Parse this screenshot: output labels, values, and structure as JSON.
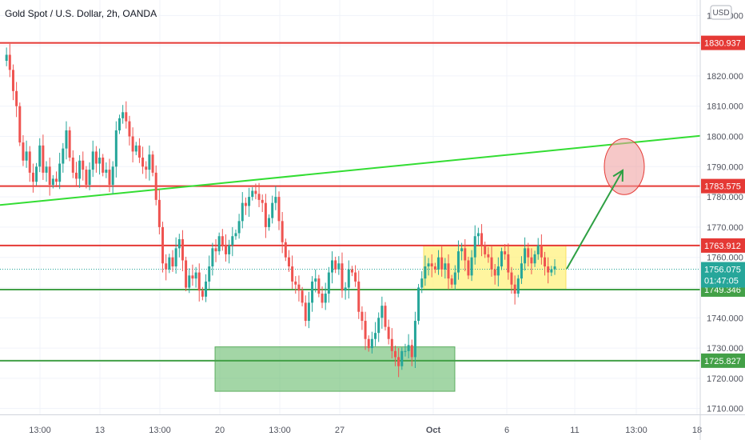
{
  "title": "Gold Spot / U.S. Dollar, 2h, OANDA",
  "currency": "USD",
  "colors": {
    "up": "#26a69a",
    "down": "#ef5350",
    "resistance": "#e53935",
    "support": "#43a047",
    "trendline": "#33dd33",
    "price_tag": "#26a69a",
    "yellow_zone": "#fff176",
    "green_zone": "#66bb6a",
    "target": "#ef9a9a"
  },
  "chart_data": {
    "type": "candlestick",
    "symbol": "XAUUSD",
    "interval": "2h",
    "ylim": [
      1707,
      1843
    ],
    "y_ticks": [
      1710,
      1720,
      1730,
      1740,
      1750,
      1760,
      1770,
      1780,
      1790,
      1800,
      1810,
      1820,
      1830,
      1840
    ],
    "y_tick_labels": [
      "1710.000",
      "1720.000",
      "1730.000",
      "1740.000",
      "1750.000",
      "1760.000",
      "1770.000",
      "1780.000",
      "1790.000",
      "1800.000",
      "1810.000",
      "1820.000",
      "1830.000",
      "1840.000"
    ],
    "x_ticks": [
      "13:00",
      "13",
      "13:00",
      "20",
      "13:00",
      "27",
      "Oct",
      "6",
      "11",
      "13:00",
      "18"
    ],
    "levels": [
      {
        "label": "1830.937",
        "value": 1830.937,
        "kind": "resistance"
      },
      {
        "label": "1783.575",
        "value": 1783.575,
        "kind": "resistance"
      },
      {
        "label": "1763.912",
        "value": 1763.912,
        "kind": "resistance"
      },
      {
        "label": "1749.346",
        "value": 1749.346,
        "kind": "support"
      },
      {
        "label": "1725.827",
        "value": 1725.827,
        "kind": "support"
      }
    ],
    "last_price": {
      "label": "1756.075",
      "value": 1756.075,
      "countdown": "01:47:05"
    },
    "trendline": {
      "from": 1777.3,
      "to": 1800.2
    },
    "zones": [
      {
        "kind": "consolidation",
        "from": 1749.3,
        "to": 1763.9
      },
      {
        "kind": "demand",
        "from": 1715.7,
        "to": 1730.4
      }
    ],
    "target_value": 1790,
    "close_path": [
      1825,
      1827,
      1822,
      1815,
      1810,
      1798,
      1792,
      1795,
      1788,
      1785,
      1790,
      1797,
      1788,
      1790,
      1784,
      1786,
      1785,
      1791,
      1796,
      1802,
      1793,
      1788,
      1786,
      1792,
      1789,
      1784,
      1789,
      1795,
      1791,
      1793,
      1788,
      1789,
      1784,
      1790,
      1802,
      1806,
      1808,
      1805,
      1800,
      1795,
      1797,
      1793,
      1790,
      1789,
      1794,
      1788,
      1779,
      1770,
      1758,
      1756,
      1760,
      1757,
      1763,
      1766,
      1759,
      1750,
      1754,
      1753,
      1755,
      1749,
      1747,
      1752,
      1757,
      1763,
      1762,
      1767,
      1764,
      1761,
      1764,
      1767,
      1768,
      1772,
      1778,
      1777,
      1780,
      1782,
      1781,
      1779,
      1778,
      1770,
      1773,
      1778,
      1780,
      1772,
      1765,
      1760,
      1757,
      1752,
      1751,
      1749,
      1745,
      1739,
      1745,
      1752,
      1753,
      1748,
      1745,
      1748,
      1755,
      1759,
      1756,
      1758,
      1749,
      1750,
      1756,
      1755,
      1752,
      1742,
      1739,
      1733,
      1730,
      1733,
      1735,
      1740,
      1744,
      1737,
      1733,
      1729,
      1727,
      1724,
      1729,
      1729,
      1731,
      1727,
      1739,
      1750,
      1753,
      1757,
      1758,
      1757,
      1756,
      1760,
      1756,
      1758,
      1753,
      1751,
      1755,
      1762,
      1763,
      1759,
      1754,
      1760,
      1767,
      1768,
      1764,
      1761,
      1760,
      1756,
      1754,
      1757,
      1762,
      1761,
      1755,
      1751,
      1748,
      1753,
      1758,
      1763,
      1760,
      1758,
      1761,
      1764,
      1760,
      1757,
      1755,
      1756,
      1757
    ]
  }
}
